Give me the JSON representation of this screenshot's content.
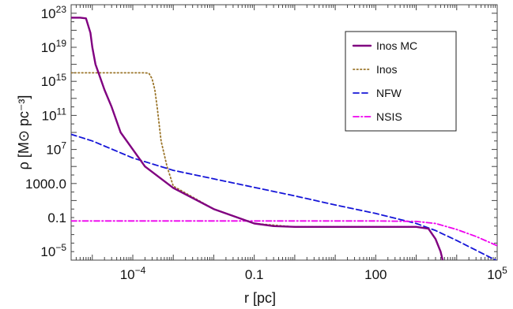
{
  "chart_data": {
    "type": "line",
    "xscale": "log",
    "yscale": "log",
    "xlim": [
      3e-06,
      100000
    ],
    "ylim": [
      1e-06,
      1e+24
    ],
    "xlabel": "r [pc]",
    "ylabel": "ρ [M⊙ pc⁻³]",
    "x_ticks": [
      {
        "value": 0.0001,
        "mantissa": "10",
        "exp": "−4"
      },
      {
        "value": 0.1,
        "text": "0.1"
      },
      {
        "value": 100,
        "text": "100"
      },
      {
        "value": 100000,
        "mantissa": "10",
        "exp": "5"
      }
    ],
    "y_ticks": [
      {
        "value": 1e+23,
        "mantissa": "10",
        "exp": "23"
      },
      {
        "value": 1e+19,
        "mantissa": "10",
        "exp": "19"
      },
      {
        "value": 1000000000000000.0,
        "mantissa": "10",
        "exp": "15"
      },
      {
        "value": 100000000000.0,
        "mantissa": "10",
        "exp": "11"
      },
      {
        "value": 10000000.0,
        "mantissa": "10",
        "exp": "7"
      },
      {
        "value": 1000,
        "text": "1000.0"
      },
      {
        "value": 0.1,
        "text": "0.1"
      },
      {
        "value": 1e-05,
        "mantissa": "10",
        "exp": "−5"
      }
    ],
    "legend": {
      "position": "top-right"
    },
    "series": [
      {
        "name": "Inos MC",
        "color": "#800080",
        "dash": "solid",
        "x": [
          3e-06,
          5e-06,
          7e-06,
          9e-06,
          1e-05,
          1.2e-05,
          1.5e-05,
          2e-05,
          3e-05,
          5e-05,
          0.0001,
          0.0002,
          0.001,
          0.01,
          0.1,
          0.3,
          1,
          100,
          1000,
          2000,
          3000,
          4000,
          4500,
          5000
        ],
        "y": [
          3e+22,
          3e+22,
          2.5e+22,
          5e+20,
          1e+19,
          1e+17,
          5000000000000000.0,
          100000000000000.0,
          1000000000000.0,
          1000000000.0,
          10000000.0,
          100000.0,
          300,
          1,
          0.02,
          0.01,
          0.008,
          0.008,
          0.008,
          0.005,
          0.0003,
          1e-05,
          1e-06,
          1e-07
        ]
      },
      {
        "name": "Inos",
        "color": "#9a7428",
        "dash": "dotted",
        "x": [
          3e-06,
          0.0002,
          0.00025,
          0.0003,
          0.00035,
          0.0004,
          0.0005,
          0.0007,
          0.001,
          0.01,
          0.1,
          1,
          100,
          1000,
          2000,
          3000,
          4000,
          4500,
          5000
        ],
        "y": [
          1e+16,
          1e+16,
          9000000000000000.0,
          2000000000000000.0,
          100000000000000.0,
          1000000000000.0,
          100000000.0,
          100000.0,
          500,
          1,
          0.02,
          0.008,
          0.008,
          0.008,
          0.005,
          0.0003,
          1e-05,
          1e-06,
          1e-07
        ]
      },
      {
        "name": "NFW",
        "color": "#1515d8",
        "dash": "dashed",
        "x": [
          3e-06,
          1e-05,
          0.0001,
          0.001,
          0.01,
          0.1,
          1,
          10,
          100,
          1000,
          3000,
          10000,
          100000
        ],
        "y": [
          600000000.0,
          100000000.0,
          1000000.0,
          35000.0,
          3500,
          350,
          35,
          3,
          0.3,
          0.02,
          0.003,
          0.0002,
          8e-07
        ]
      },
      {
        "name": "NSIS",
        "color": "#ee00ee",
        "dash": "dashdot",
        "x": [
          3e-06,
          0.001,
          0.1,
          10,
          100,
          1000,
          3000,
          10000,
          30000,
          100000
        ],
        "y": [
          0.04,
          0.04,
          0.04,
          0.04,
          0.04,
          0.035,
          0.02,
          0.004,
          0.0006,
          5e-05
        ]
      }
    ]
  }
}
